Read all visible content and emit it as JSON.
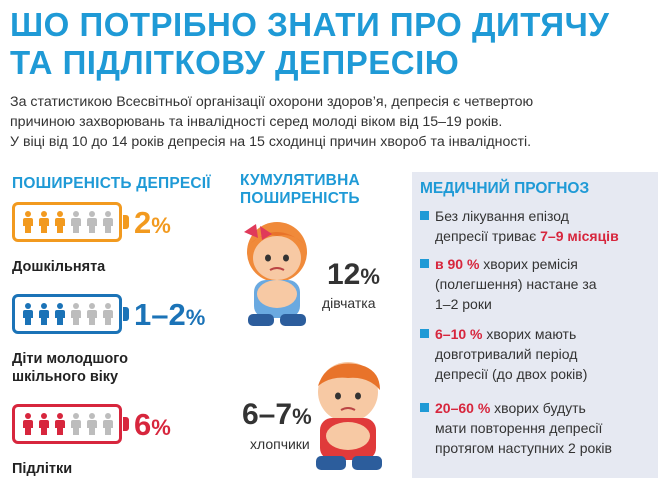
{
  "title": {
    "line1": "ШО ПОТРІБНО ЗНАТИ ПРО ДИТЯЧУ",
    "line2": "ТА ПІДЛІТКОВУ ДЕПРЕСІЮ"
  },
  "intro": {
    "line1": "За статистикою Всесвітньої організації охорони здоров’я, депресія є четвертою",
    "line2": "причиною захворювань та інвалідності серед молоді віком від 15–19 років.",
    "line3": "У віці від 10 до 14 років депресія на 15 сходинці причин хвороб та інвалідності."
  },
  "prevalence": {
    "heading": "ПОШИРЕНІСТЬ ДЕПРЕСІЇ",
    "groups": [
      {
        "value": "2",
        "unit": "%",
        "label": "Дошкільнята",
        "color": "#f29a1f",
        "filled": 3
      },
      {
        "value": "1–2",
        "unit": "%",
        "label_line1": "Діти молодшого",
        "label_line2": "шкільного віку",
        "color": "#1b73b7",
        "filled": 3
      },
      {
        "value": "6",
        "unit": "%",
        "label": "Підлітки",
        "color": "#d7263d",
        "filled": 3
      }
    ]
  },
  "cumulative": {
    "heading_line1": "КУМУЛЯТИВНА",
    "heading_line2": "ПОШИРЕНІСТЬ",
    "girls": {
      "value": "12",
      "unit": "%",
      "label": "дівчатка"
    },
    "boys": {
      "value": "6–7",
      "unit": "%",
      "label": "хлопчики"
    }
  },
  "prognosis": {
    "heading": "МЕДИЧНИЙ ПРОГНОЗ",
    "item1": {
      "pre": "Без лікування епізод",
      "mid": "депресії триває ",
      "red": "7–9 місяців"
    },
    "item2": {
      "red": "в 90 %",
      "rest": " хворих ремісія",
      "l2": "(полегшення) настане за",
      "l3": "1–2 роки"
    },
    "item3": {
      "red": "6–10 %",
      "rest": " хворих мають",
      "l2": "довготривалий період",
      "l3": "депресії (до двох років)"
    },
    "item4": {
      "red": "20–60 %",
      "rest": " хворих будуть",
      "l2": "мати повторення депресії",
      "l3": "протягом наступних 2 років"
    }
  },
  "colors": {
    "accent": "#1f9ad6",
    "red": "#d7263d",
    "orange": "#f29a1f",
    "blue": "#1b73b7",
    "box": "#e6e9f2"
  }
}
